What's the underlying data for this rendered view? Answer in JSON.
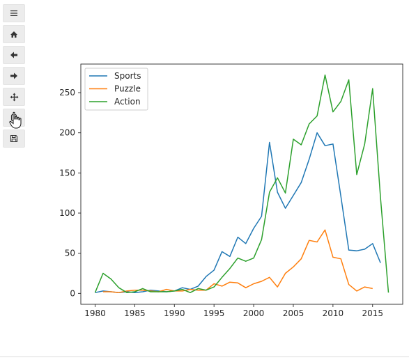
{
  "toolbar": {
    "buttons": [
      {
        "name": "menu-button",
        "icon": "hamburger-icon"
      },
      {
        "name": "home-button",
        "icon": "home-icon"
      },
      {
        "name": "back-button",
        "icon": "arrow-left-icon"
      },
      {
        "name": "forward-button",
        "icon": "arrow-right-icon"
      },
      {
        "name": "pan-button",
        "icon": "move-arrows-icon"
      },
      {
        "name": "zoom-button",
        "icon": "zoom-rect-icon"
      },
      {
        "name": "save-button",
        "icon": "floppy-disk-icon"
      }
    ]
  },
  "chart_data": {
    "type": "line",
    "title": "",
    "xlabel": "",
    "ylabel": "",
    "xlim": [
      1978.2,
      2018.8
    ],
    "ylim": [
      -13.6,
      285.6
    ],
    "xticks": [
      1980,
      1985,
      1990,
      1995,
      2000,
      2005,
      2010,
      2015
    ],
    "yticks": [
      0,
      50,
      100,
      150,
      200,
      250
    ],
    "grid": false,
    "legend_position": "top-left",
    "series": [
      {
        "name": "Sports",
        "color": "#1f77b4",
        "x": [
          1980,
          1981,
          1982,
          1983,
          1984,
          1985,
          1986,
          1987,
          1988,
          1989,
          1990,
          1991,
          1992,
          1993,
          1994,
          1995,
          1996,
          1997,
          1998,
          1999,
          2000,
          2001,
          2002,
          2003,
          2004,
          2005,
          2006,
          2007,
          2008,
          2009,
          2010,
          2011,
          2012,
          2013,
          2014,
          2015,
          2016
        ],
        "y": [
          1,
          3,
          2,
          1,
          2,
          1,
          2,
          4,
          3,
          2,
          3,
          7,
          5,
          9,
          21,
          29,
          52,
          46,
          70,
          62,
          81,
          96,
          188,
          126,
          106,
          122,
          138,
          167,
          200,
          184,
          186,
          121,
          54,
          53,
          55,
          62,
          38
        ]
      },
      {
        "name": "Puzzle",
        "color": "#ff7f0e",
        "x": [
          1981,
          1982,
          1983,
          1984,
          1985,
          1986,
          1987,
          1988,
          1989,
          1990,
          1991,
          1992,
          1993,
          1994,
          1995,
          1996,
          1997,
          1998,
          1999,
          2000,
          2001,
          2002,
          2003,
          2004,
          2005,
          2006,
          2007,
          2008,
          2009,
          2010,
          2011,
          2012,
          2013,
          2014,
          2015
        ],
        "y": [
          2,
          2,
          1,
          3,
          4,
          4,
          3,
          2,
          5,
          3,
          3,
          5,
          4,
          4,
          12,
          9,
          14,
          13,
          7,
          12,
          15,
          20,
          8,
          25,
          33,
          43,
          66,
          64,
          79,
          45,
          43,
          11,
          3,
          8,
          6
        ]
      },
      {
        "name": "Action",
        "color": "#2ca02c",
        "x": [
          1980,
          1981,
          1982,
          1983,
          1984,
          1985,
          1986,
          1987,
          1988,
          1989,
          1990,
          1991,
          1992,
          1993,
          1994,
          1995,
          1996,
          1997,
          1998,
          1999,
          2000,
          2001,
          2002,
          2003,
          2004,
          2005,
          2006,
          2007,
          2008,
          2009,
          2010,
          2011,
          2012,
          2013,
          2014,
          2015,
          2016,
          2017
        ],
        "y": [
          1,
          25,
          18,
          7,
          1,
          2,
          6,
          2,
          2,
          2,
          3,
          5,
          1,
          6,
          4,
          8,
          20,
          31,
          44,
          40,
          44,
          67,
          126,
          144,
          125,
          192,
          185,
          211,
          221,
          272,
          226,
          239,
          266,
          148,
          186,
          255,
          119,
          1
        ]
      }
    ]
  }
}
